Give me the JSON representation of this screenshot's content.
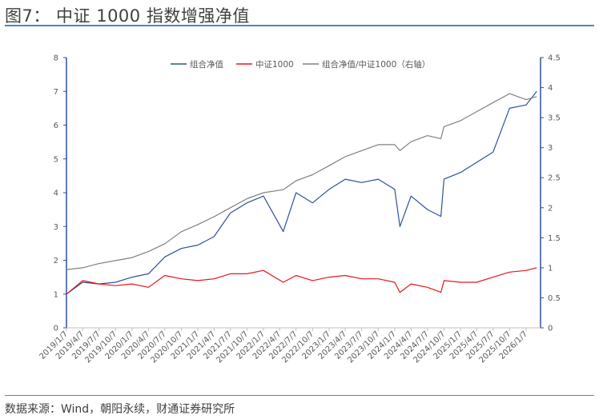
{
  "title": "图7： 中证 1000 指数增强净值",
  "source": "数据来源：Wind，朝阳永续，财通证券研究所",
  "chart_data": {
    "type": "line",
    "title": "",
    "legend_position": "top",
    "grid": false,
    "y_left": {
      "range": [
        0,
        8
      ],
      "ticks": [
        "0",
        "1",
        "2",
        "3",
        "4",
        "5",
        "6",
        "7",
        "8"
      ]
    },
    "y_right": {
      "range": [
        0,
        4.5
      ],
      "ticks": [
        "0",
        "0.5",
        "1",
        "1.5",
        "2",
        "2.5",
        "3",
        "3.5",
        "4",
        "4.5"
      ]
    },
    "x_tick_labels": [
      "2019/1/7",
      "2019/4/7",
      "2019/7/7",
      "2019/10/7",
      "2020/1/7",
      "2020/4/7",
      "2020/7/7",
      "2020/10/7",
      "2021/1/7",
      "2021/4/7",
      "2021/7/7",
      "2021/10/7",
      "2022/1/7",
      "2022/4/7",
      "2022/7/7",
      "2022/10/7",
      "2023/1/7",
      "2023/4/7",
      "2023/7/7",
      "2023/10/7",
      "2024/1/7",
      "2024/4/7",
      "2024/7/7",
      "2024/10/7",
      "2025/1/7",
      "2025/4/7",
      "2025/7/7",
      "2025/10/7",
      "2026/1/7"
    ],
    "x": [
      "2019/1/7",
      "2019/4/7",
      "2019/7/7",
      "2019/10/7",
      "2020/1/7",
      "2020/4/7",
      "2020/7/7",
      "2020/10/7",
      "2021/1/7",
      "2021/4/7",
      "2021/7/7",
      "2021/10/7",
      "2022/1/7",
      "2022/4/27",
      "2022/7/7",
      "2022/10/7",
      "2023/1/7",
      "2023/4/7",
      "2023/7/7",
      "2023/10/7",
      "2024/1/7",
      "2024/2/5",
      "2024/4/7",
      "2024/7/7",
      "2024/9/20",
      "2024/10/7",
      "2025/1/7",
      "2025/4/7",
      "2025/7/7",
      "2025/10/7",
      "2026/1/7",
      "2026/3/7"
    ],
    "series": [
      {
        "name": "组合净值",
        "axis": "left",
        "color": "#2e4fa0",
        "values": [
          1.0,
          1.35,
          1.3,
          1.35,
          1.5,
          1.6,
          2.1,
          2.35,
          2.45,
          2.7,
          3.4,
          3.7,
          3.9,
          2.85,
          4.0,
          3.7,
          4.1,
          4.4,
          4.3,
          4.4,
          4.1,
          3.0,
          3.9,
          3.5,
          3.3,
          4.4,
          4.6,
          4.9,
          5.2,
          6.5,
          6.6,
          7.0
        ]
      },
      {
        "name": "中证1000",
        "axis": "left",
        "color": "#e8141b",
        "values": [
          1.0,
          1.4,
          1.3,
          1.25,
          1.3,
          1.2,
          1.55,
          1.45,
          1.4,
          1.45,
          1.6,
          1.6,
          1.7,
          1.35,
          1.55,
          1.4,
          1.5,
          1.55,
          1.45,
          1.45,
          1.35,
          1.05,
          1.3,
          1.2,
          1.05,
          1.4,
          1.35,
          1.35,
          1.5,
          1.65,
          1.7,
          1.78
        ]
      },
      {
        "name": "组合净值/中证1000（右轴）",
        "axis": "right",
        "color": "#808080",
        "values": [
          0.97,
          1.0,
          1.07,
          1.12,
          1.17,
          1.27,
          1.4,
          1.6,
          1.72,
          1.85,
          2.0,
          2.15,
          2.25,
          2.3,
          2.45,
          2.55,
          2.7,
          2.85,
          2.95,
          3.05,
          3.05,
          2.95,
          3.1,
          3.2,
          3.15,
          3.35,
          3.45,
          3.6,
          3.75,
          3.9,
          3.8,
          3.85
        ]
      }
    ]
  }
}
